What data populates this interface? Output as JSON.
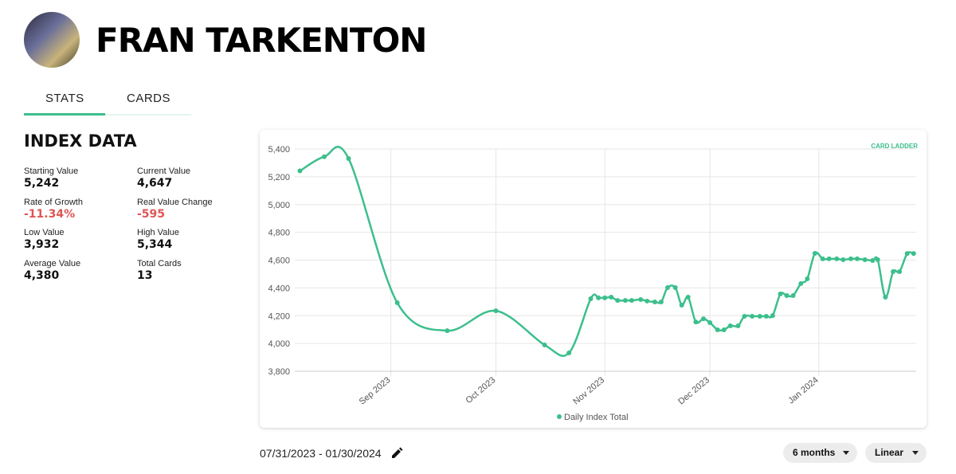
{
  "header": {
    "name": "FRAN TARKENTON"
  },
  "tabs": [
    "STATS",
    "CARDS"
  ],
  "index_data": {
    "title": "INDEX DATA",
    "stats": [
      {
        "label": "Starting Value",
        "value": "5,242"
      },
      {
        "label": "Current Value",
        "value": "4,647"
      },
      {
        "label": "Rate of Growth",
        "value": "-11.34%"
      },
      {
        "label": "Real Value Change",
        "value": "-595"
      },
      {
        "label": "Low Value",
        "value": "3,932"
      },
      {
        "label": "High Value",
        "value": "5,344"
      },
      {
        "label": "Average Value",
        "value": "4,380"
      },
      {
        "label": "Total Cards",
        "value": "13"
      }
    ]
  },
  "watermark": "CARD LADDER",
  "controls": {
    "date_range": "07/31/2023 - 01/30/2024",
    "period": "6 months",
    "scale": "Linear"
  },
  "chart_data": {
    "type": "line",
    "xlim": [
      2023.591,
      2024.076
    ],
    "xticks": [
      {
        "value": 2023.666,
        "label": "Sep 2023"
      },
      {
        "value": 2023.748,
        "label": "Oct 2023"
      },
      {
        "value": 2023.833,
        "label": "Nov 2023"
      },
      {
        "value": 2023.915,
        "label": "Dec 2023"
      },
      {
        "value": 2024.0,
        "label": "Jan 2024"
      }
    ],
    "ylim": [
      3800,
      5400
    ],
    "yticks": [
      {
        "value": 3800,
        "label": "3,800"
      },
      {
        "value": 4000,
        "label": "4,000"
      },
      {
        "value": 4200,
        "label": "4,200"
      },
      {
        "value": 4400,
        "label": "4,400"
      },
      {
        "value": 4600,
        "label": "4,600"
      },
      {
        "value": 4800,
        "label": "4,800"
      },
      {
        "value": 5000,
        "label": "5,000"
      },
      {
        "value": 5200,
        "label": "5,200"
      },
      {
        "value": 5400,
        "label": "5,400"
      }
    ],
    "grid": true,
    "legend": "bottom",
    "series": [
      {
        "name": "Daily Index Total",
        "color": "#3cbf8c",
        "x": [
          2023.595,
          2023.614,
          2023.633,
          2023.671,
          2023.71,
          2023.748,
          2023.786,
          2023.805,
          2023.822,
          2023.828,
          2023.833,
          2023.838,
          2023.843,
          2023.849,
          2023.854,
          2023.861,
          2023.866,
          2023.872,
          2023.877,
          2023.882,
          2023.888,
          2023.893,
          2023.898,
          2023.904,
          2023.91,
          2023.915,
          2023.921,
          2023.926,
          2023.931,
          2023.937,
          2023.942,
          2023.948,
          2023.954,
          2023.959,
          2023.964,
          2023.97,
          2023.975,
          2023.98,
          2023.986,
          2023.991,
          2023.997,
          2024.003,
          2024.008,
          2024.014,
          2024.019,
          2024.025,
          2024.03,
          2024.036,
          2024.042,
          2024.046,
          2024.052,
          2024.058,
          2024.063,
          2024.069,
          2024.074
        ],
        "values": [
          5242,
          5344,
          5331,
          4293,
          4092,
          4235,
          3989,
          3932,
          4322,
          4328,
          4328,
          4333,
          4310,
          4310,
          4310,
          4316,
          4305,
          4299,
          4299,
          4402,
          4402,
          4276,
          4333,
          4155,
          4178,
          4150,
          4098,
          4098,
          4127,
          4127,
          4196,
          4196,
          4196,
          4196,
          4201,
          4356,
          4345,
          4345,
          4431,
          4465,
          4649,
          4609,
          4609,
          4609,
          4603,
          4609,
          4609,
          4603,
          4597,
          4603,
          4333,
          4517,
          4517,
          4647,
          4647
        ]
      }
    ]
  }
}
